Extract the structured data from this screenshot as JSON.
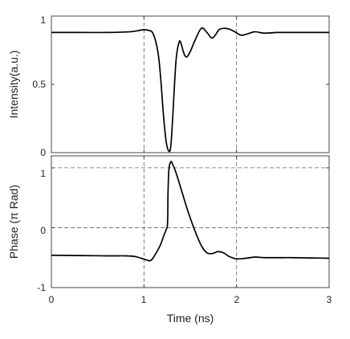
{
  "chart_data": [
    {
      "type": "line",
      "title": "",
      "xlabel": "",
      "ylabel": "Intensity(a.u.)",
      "xlim": [
        0,
        3
      ],
      "ylim": [
        0,
        1
      ],
      "xticks": [
        0,
        1,
        2,
        3
      ],
      "yticks": [
        0,
        0.5,
        1
      ],
      "xtick_labels": [
        "0",
        "1",
        "2",
        "3"
      ],
      "ytick_labels": [
        "0",
        "0.5",
        "1"
      ],
      "grid_x": [
        1,
        2
      ],
      "grid_y": [],
      "series": [
        {
          "color": "#000000",
          "x": [
            0,
            0.3,
            0.6,
            0.85,
            0.95,
            1.0,
            1.05,
            1.1,
            1.15,
            1.18,
            1.21,
            1.24,
            1.27,
            1.29,
            1.31,
            1.33,
            1.35,
            1.38,
            1.4,
            1.43,
            1.46,
            1.5,
            1.55,
            1.62,
            1.68,
            1.73,
            1.77,
            1.81,
            1.86,
            1.92,
            1.98,
            2.05,
            2.12,
            2.2,
            2.3,
            2.45,
            2.6,
            2.8,
            3.0
          ],
          "y": [
            0.88,
            0.88,
            0.88,
            0.885,
            0.895,
            0.9,
            0.895,
            0.87,
            0.74,
            0.55,
            0.28,
            0.08,
            0.01,
            0.05,
            0.25,
            0.5,
            0.7,
            0.81,
            0.8,
            0.73,
            0.7,
            0.74,
            0.82,
            0.91,
            0.88,
            0.84,
            0.86,
            0.9,
            0.91,
            0.905,
            0.885,
            0.86,
            0.87,
            0.885,
            0.875,
            0.88,
            0.88,
            0.88,
            0.88
          ]
        }
      ]
    },
    {
      "type": "line",
      "title": "",
      "xlabel": "Time (ns)",
      "ylabel": "Phase (π Rad)",
      "xlim": [
        0,
        3
      ],
      "ylim": [
        -1,
        1.2
      ],
      "xticks": [
        0,
        1,
        2,
        3
      ],
      "yticks": [
        -1,
        0,
        1
      ],
      "xtick_labels": [
        "0",
        "1",
        "2",
        "3"
      ],
      "ytick_labels": [
        "-1",
        "0",
        "1"
      ],
      "grid_x": [
        1,
        2
      ],
      "grid_y": [
        0,
        1
      ],
      "series": [
        {
          "color": "#000000",
          "x": [
            0,
            0.3,
            0.6,
            0.8,
            0.9,
            0.97,
            1.03,
            1.07,
            1.1,
            1.14,
            1.18,
            1.21,
            1.24,
            1.255,
            1.26,
            1.27,
            1.29,
            1.31,
            1.35,
            1.4,
            1.47,
            1.55,
            1.62,
            1.68,
            1.74,
            1.8,
            1.86,
            1.92,
            2.0,
            2.1,
            2.2,
            2.3,
            2.45,
            2.6,
            2.8,
            3.0
          ],
          "y": [
            -0.46,
            -0.465,
            -0.47,
            -0.47,
            -0.48,
            -0.51,
            -0.54,
            -0.55,
            -0.5,
            -0.4,
            -0.28,
            -0.15,
            -0.03,
            0.08,
            0.6,
            0.98,
            1.1,
            1.06,
            0.9,
            0.65,
            0.3,
            -0.05,
            -0.3,
            -0.42,
            -0.43,
            -0.4,
            -0.42,
            -0.48,
            -0.52,
            -0.51,
            -0.49,
            -0.5,
            -0.5,
            -0.5,
            -0.505,
            -0.51
          ]
        }
      ]
    }
  ]
}
